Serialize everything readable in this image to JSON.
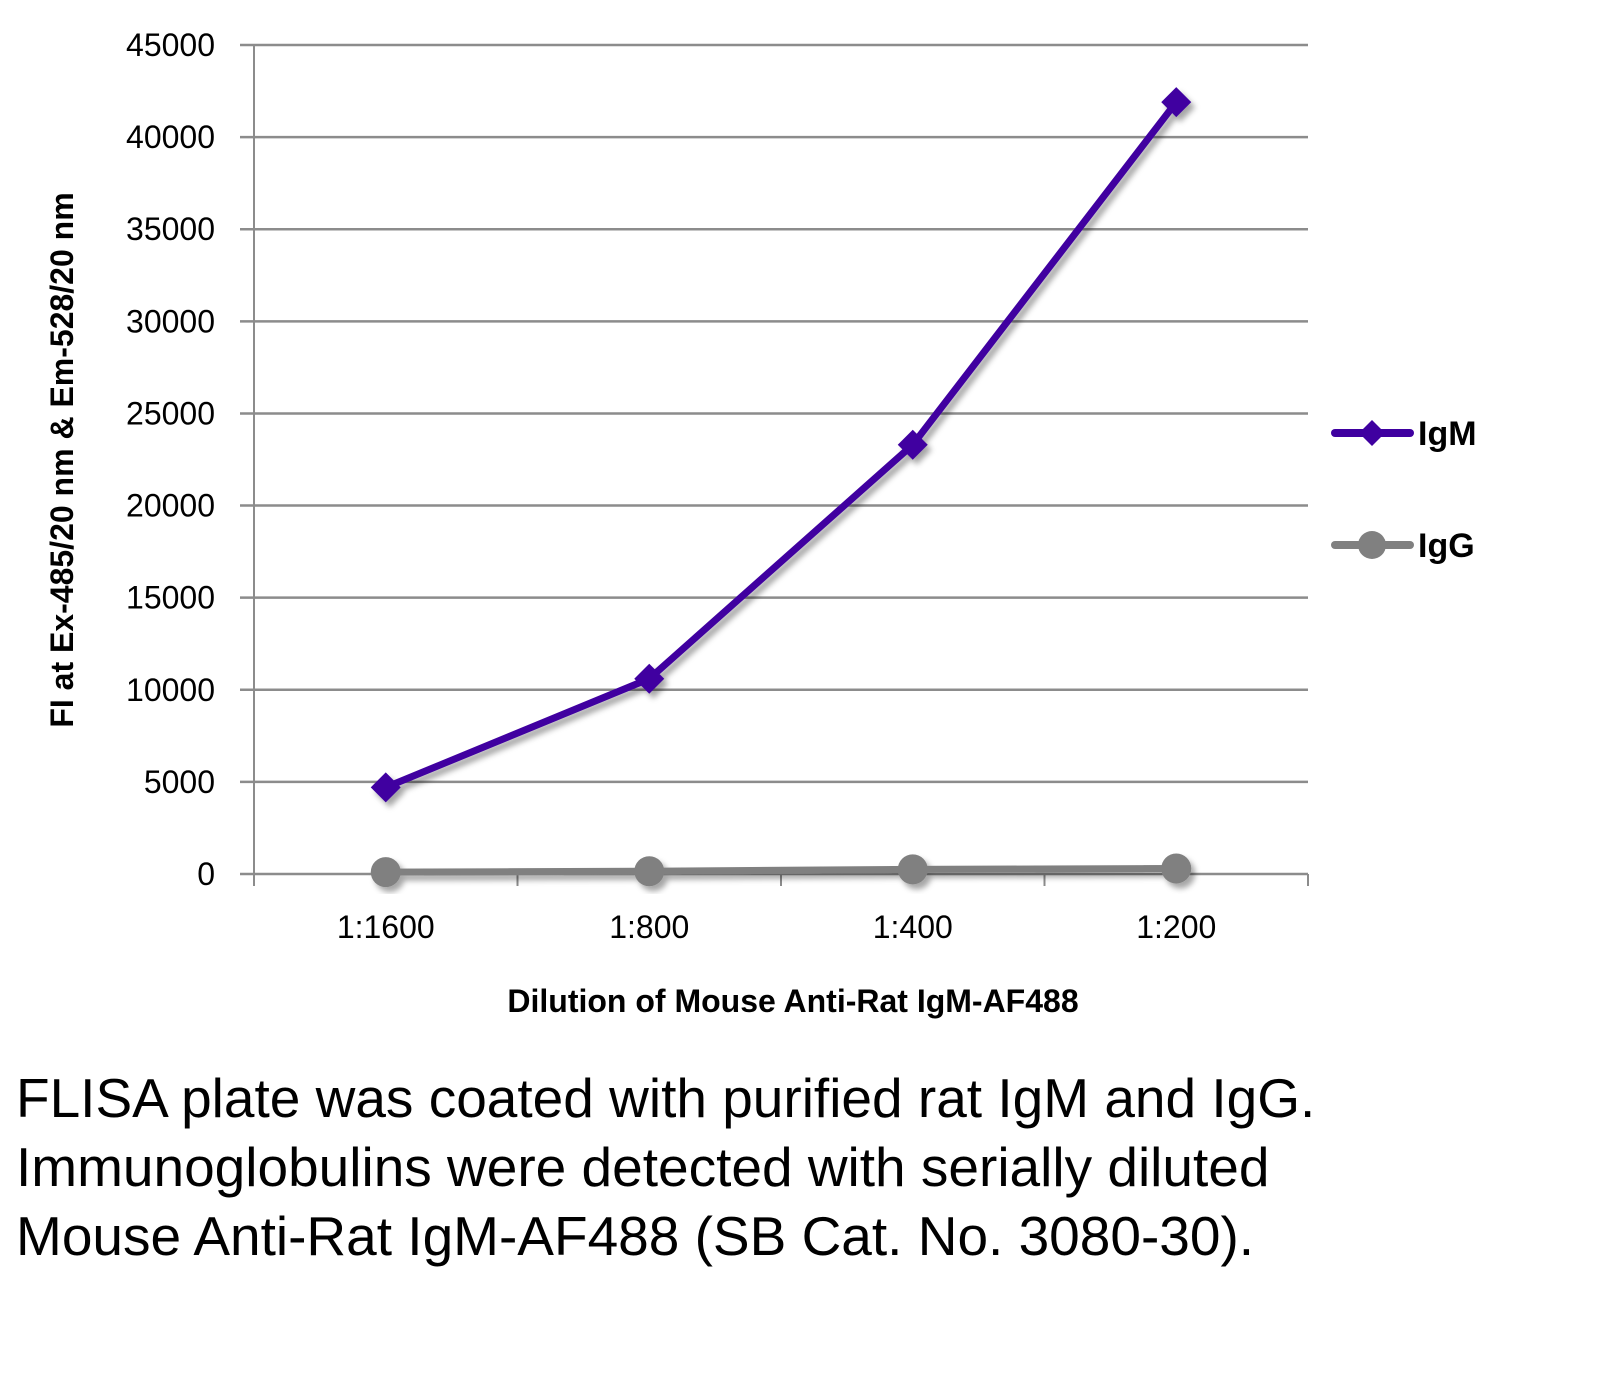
{
  "chart_data": {
    "type": "line",
    "title": "",
    "xlabel": "Dilution of Mouse Anti-Rat IgM-AF488",
    "ylabel": "FI at Ex-485/20 nm & Em-528/20 nm",
    "categories": [
      "1:1600",
      "1:800",
      "1:400",
      "1:200"
    ],
    "ylim": [
      0,
      45000
    ],
    "yticks": [
      0,
      5000,
      10000,
      15000,
      20000,
      25000,
      30000,
      35000,
      40000,
      45000
    ],
    "ytick_labels": [
      "0",
      "5000",
      "10000",
      "15000",
      "20000",
      "25000",
      "30000",
      "35000",
      "40000",
      "45000"
    ],
    "grid": true,
    "legend_position": "right",
    "series": [
      {
        "name": "IgM",
        "color": "#3f00a0",
        "marker": "diamond",
        "values": [
          4700,
          10600,
          23300,
          41900
        ]
      },
      {
        "name": "IgG",
        "color": "#808080",
        "marker": "circle",
        "values": [
          100,
          150,
          250,
          300
        ]
      }
    ]
  },
  "caption": "FLISA plate was coated with purified rat IgM and IgG.  Immunoglobulins were detected with serially diluted Mouse Anti-Rat IgM-AF488 (SB Cat. No. 3080-30)."
}
